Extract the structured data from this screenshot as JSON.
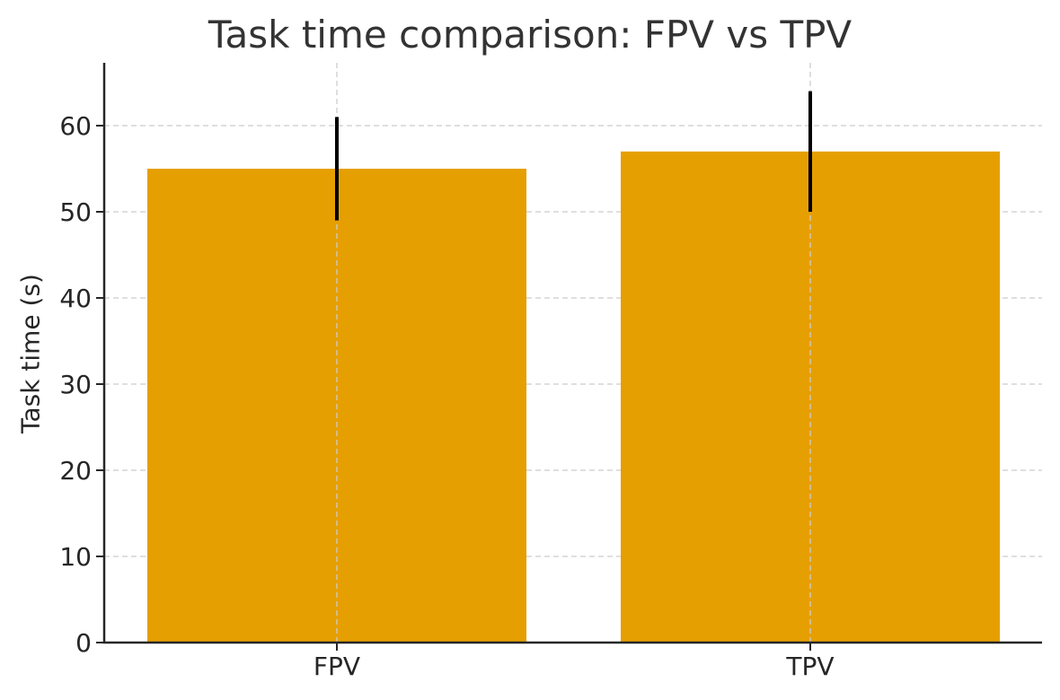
{
  "chart_data": {
    "type": "bar",
    "title": "Task time comparison: FPV vs TPV",
    "xlabel": "",
    "ylabel": "Task time (s)",
    "categories": [
      "FPV",
      "TPV"
    ],
    "values": [
      55,
      57
    ],
    "error_bars": [
      6,
      7
    ],
    "ylim": [
      0,
      67.4
    ],
    "yticks": [
      0,
      10,
      20,
      30,
      40,
      50,
      60
    ],
    "grid": true,
    "bar_color": "#E69F00"
  }
}
